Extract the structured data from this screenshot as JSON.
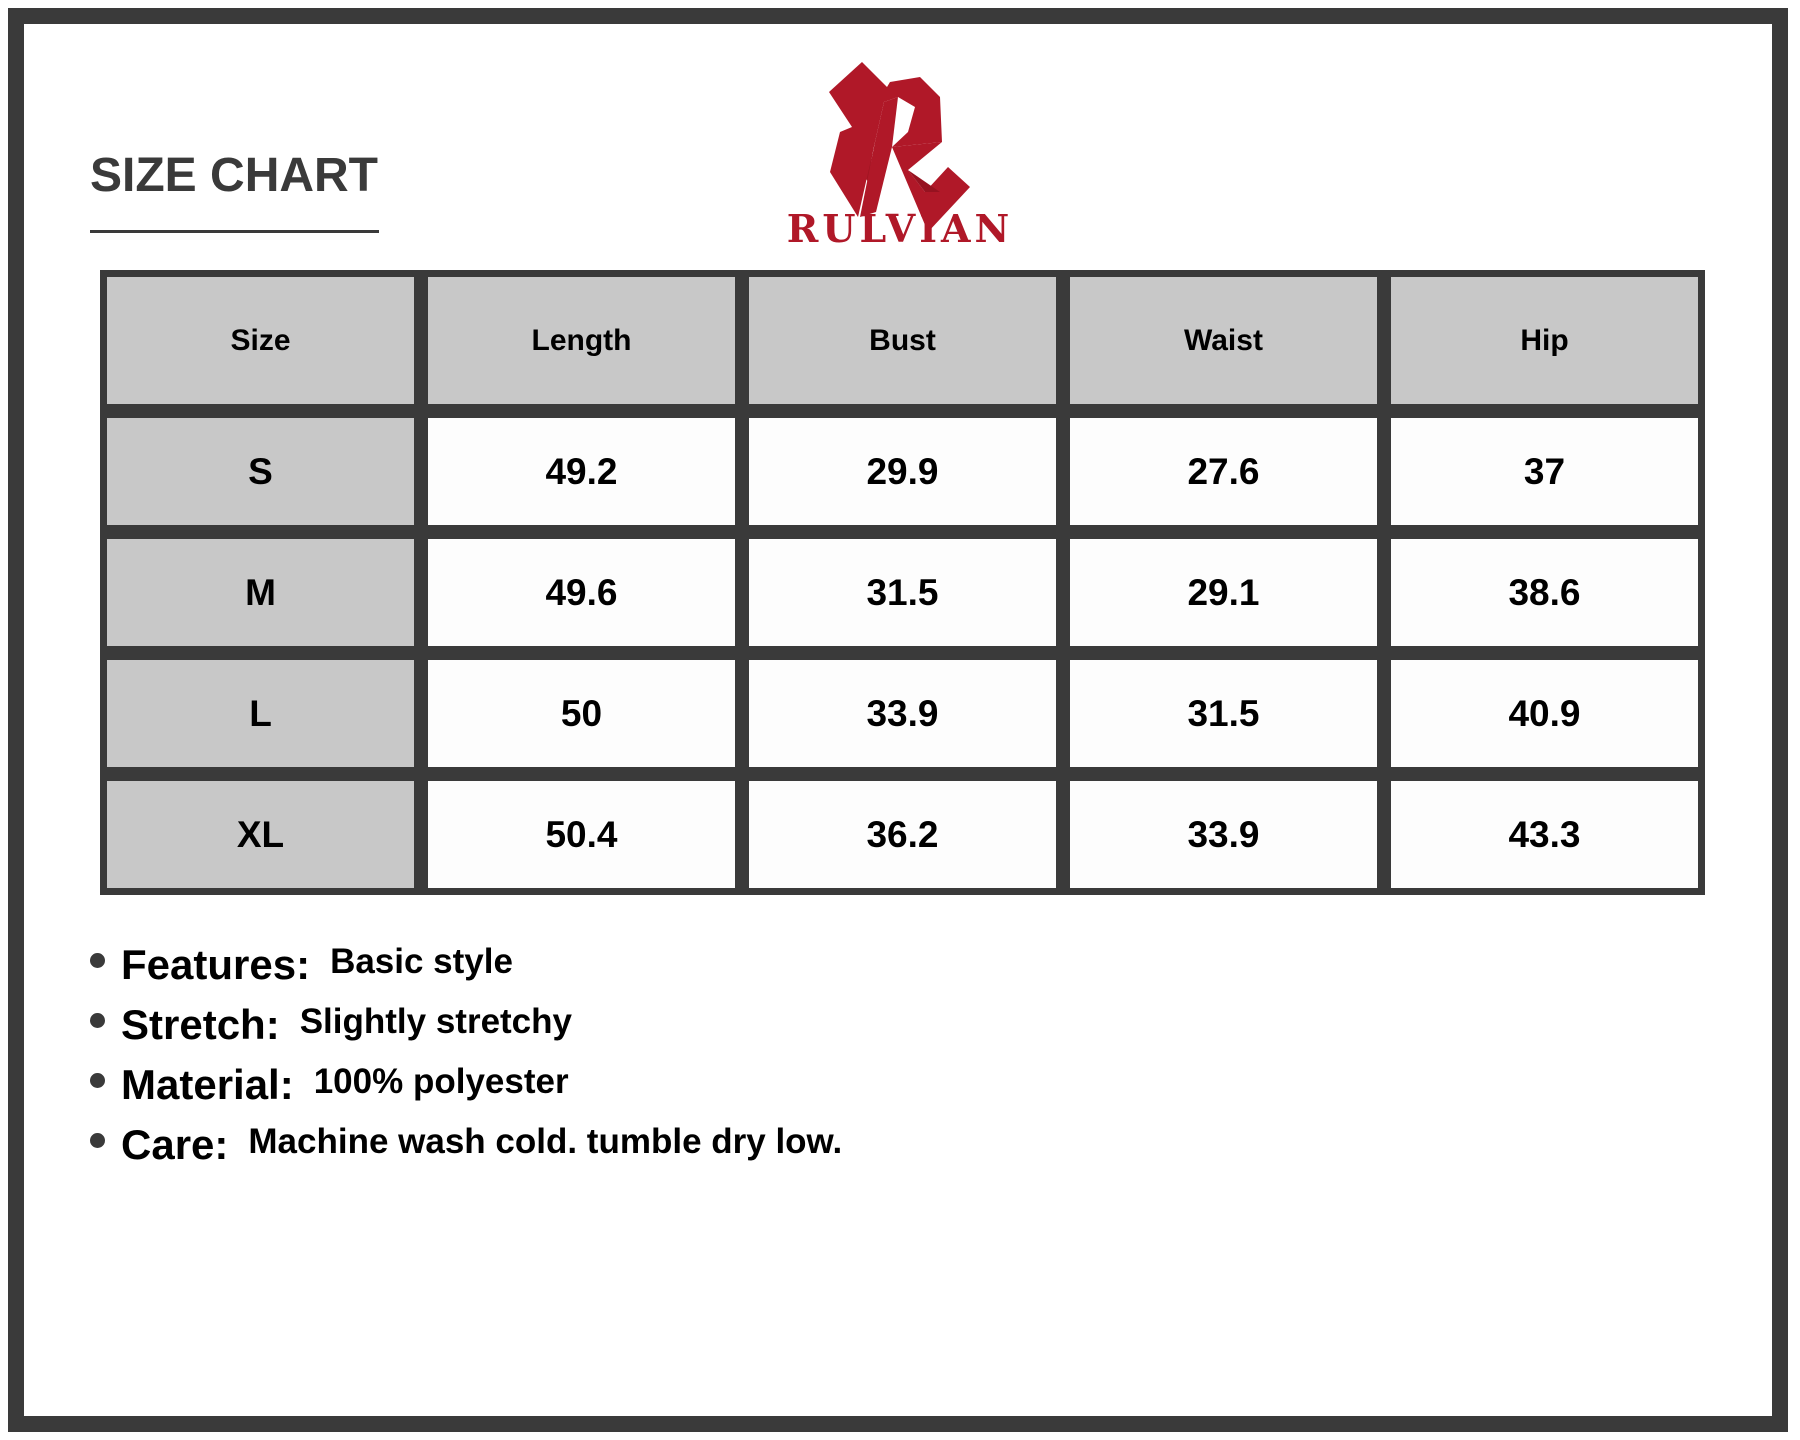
{
  "title": "SIZE CHART",
  "brand": {
    "name": "RULVIAN",
    "color": "#b01828"
  },
  "table": {
    "headers": [
      "Size",
      "Length",
      "Bust",
      "Waist",
      "Hip"
    ],
    "rows": [
      [
        "S",
        "49.2",
        "29.9",
        "27.6",
        "37"
      ],
      [
        "M",
        "49.6",
        "31.5",
        "29.1",
        "38.6"
      ],
      [
        "L",
        "50",
        "33.9",
        "31.5",
        "40.9"
      ],
      [
        "XL",
        "50.4",
        "36.2",
        "33.9",
        "43.3"
      ]
    ]
  },
  "notes": [
    {
      "label": "Features:",
      "value": "Basic style"
    },
    {
      "label": "Stretch:",
      "value": "Slightly stretchy"
    },
    {
      "label": "Material:",
      "value": "100% polyester"
    },
    {
      "label": "Care:",
      "value": "Machine wash cold. tumble dry low."
    }
  ]
}
